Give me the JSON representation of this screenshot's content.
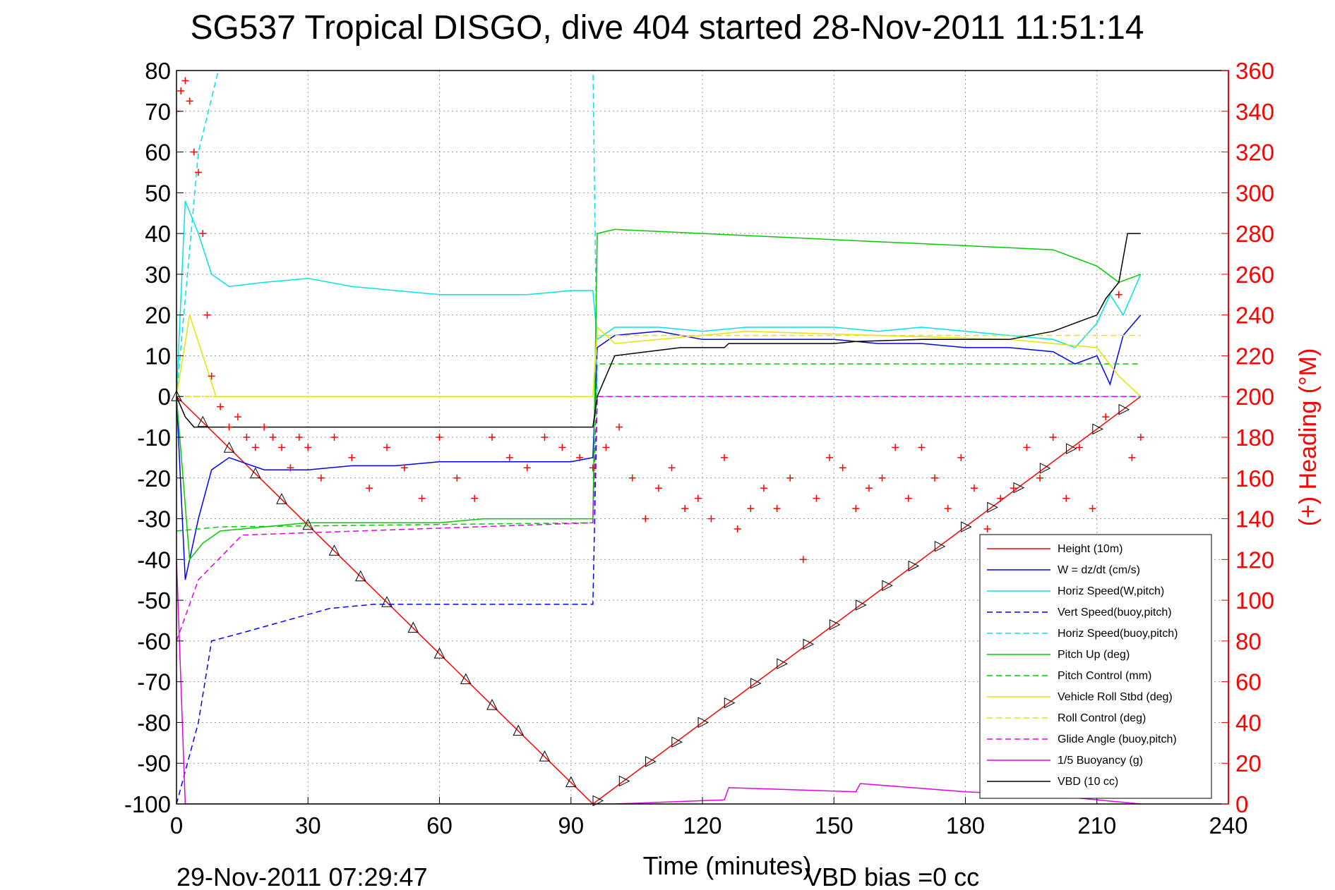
{
  "chart_data": {
    "type": "line",
    "title": "SG537 Tropical DISGO, dive 404 started 28-Nov-2011 11:51:14",
    "xlabel": "Time (minutes)",
    "ylabel": "",
    "y2label": "(+) Heading (°M)",
    "xlim": [
      0,
      240
    ],
    "ylim": [
      -100,
      80
    ],
    "y2lim": [
      0,
      360
    ],
    "xticks": [
      0,
      30,
      60,
      90,
      120,
      150,
      180,
      210,
      240
    ],
    "yticks": [
      -100,
      -90,
      -80,
      -70,
      -60,
      -50,
      -40,
      -30,
      -20,
      -10,
      0,
      10,
      20,
      30,
      40,
      50,
      60,
      70,
      80
    ],
    "y2ticks": [
      0,
      20,
      40,
      60,
      80,
      100,
      120,
      140,
      160,
      180,
      200,
      220,
      240,
      260,
      280,
      300,
      320,
      340,
      360
    ],
    "grid": true,
    "legend_position": "bottom-right",
    "footer_left": "29-Nov-2011 07:29:47",
    "footer_right": "VBD bias =0 cc",
    "series": [
      {
        "name": "Height (10m)",
        "color": "#ff0000",
        "style": "solid",
        "x": [
          0,
          95,
          220
        ],
        "y": [
          0,
          -100,
          0
        ]
      },
      {
        "name": "W = dz/dt (cm/s)",
        "color": "#0000ff",
        "style": "solid",
        "x": [
          0,
          2,
          5,
          8,
          12,
          20,
          30,
          40,
          50,
          60,
          70,
          80,
          90,
          95,
          96,
          100,
          110,
          120,
          130,
          140,
          150,
          160,
          170,
          180,
          190,
          200,
          205,
          210,
          213,
          216,
          220
        ],
        "y": [
          0,
          -45,
          -30,
          -18,
          -15,
          -18,
          -18,
          -17,
          -17,
          -16,
          -16,
          -16,
          -16,
          -15,
          12,
          15,
          16,
          14,
          14,
          14,
          14,
          13,
          13,
          12,
          12,
          11,
          8,
          10,
          3,
          15,
          20
        ]
      },
      {
        "name": "Horiz Speed(W,pitch)",
        "color": "#00e5e5",
        "style": "solid",
        "x": [
          0,
          2,
          5,
          8,
          12,
          20,
          30,
          40,
          50,
          60,
          70,
          80,
          90,
          95,
          96,
          100,
          110,
          120,
          130,
          140,
          150,
          160,
          170,
          180,
          190,
          200,
          205,
          210,
          213,
          216,
          220
        ],
        "y": [
          0,
          48,
          40,
          30,
          27,
          28,
          29,
          27,
          26,
          25,
          25,
          25,
          26,
          26,
          14,
          17,
          17,
          16,
          17,
          17,
          17,
          16,
          17,
          16,
          15,
          14,
          12,
          18,
          25,
          20,
          30
        ]
      },
      {
        "name": "Vert Speed(buoy,pitch)",
        "color": "#0000ff",
        "style": "dashed",
        "x": [
          0,
          5,
          8,
          15,
          25,
          35,
          45,
          55,
          65,
          75,
          85,
          95,
          96
        ],
        "y": [
          -100,
          -80,
          -60,
          -58,
          -55,
          -52,
          -51,
          -51,
          -51,
          -51,
          -51,
          -51,
          0
        ]
      },
      {
        "name": "Horiz Speed(buoy,pitch)",
        "color": "#00e5e5",
        "style": "dashed",
        "x": [
          0,
          5,
          10,
          30,
          60,
          90,
          95,
          96,
          220
        ],
        "y": [
          0,
          60,
          82,
          84,
          84,
          84,
          82,
          0,
          0
        ]
      },
      {
        "name": "Pitch Up (deg)",
        "color": "#00cc00",
        "style": "solid",
        "x": [
          0,
          3,
          6,
          10,
          20,
          30,
          40,
          50,
          60,
          70,
          80,
          90,
          95,
          96,
          100,
          120,
          140,
          160,
          180,
          200,
          210,
          215,
          220
        ],
        "y": [
          0,
          -40,
          -36,
          -33,
          -32,
          -31,
          -31,
          -31,
          -31,
          -30,
          -30,
          -30,
          -30,
          40,
          41,
          40,
          39,
          38,
          37,
          36,
          32,
          28,
          30
        ]
      },
      {
        "name": "Pitch Control (mm)",
        "color": "#00cc00",
        "style": "dashed",
        "x": [
          0,
          10,
          95,
          96,
          220
        ],
        "y": [
          -33,
          -32,
          -31,
          8,
          8
        ]
      },
      {
        "name": "Vehicle Roll Stbd (deg)",
        "color": "#e5e500",
        "style": "solid",
        "x": [
          0,
          3,
          6,
          9,
          15,
          30,
          60,
          95,
          96,
          100,
          130,
          160,
          190,
          210,
          215,
          220
        ],
        "y": [
          0,
          20,
          10,
          0,
          0,
          0,
          0,
          0,
          17,
          13,
          16,
          15,
          14,
          12,
          5,
          0
        ]
      },
      {
        "name": "Roll Control (deg)",
        "color": "#e5e500",
        "style": "dashed",
        "x": [
          0,
          10,
          95,
          96,
          220
        ],
        "y": [
          0,
          0,
          0,
          15,
          15
        ]
      },
      {
        "name": "Glide Angle (buoy,pitch)",
        "color": "#e500e5",
        "style": "dashed",
        "x": [
          0,
          5,
          15,
          95,
          96,
          220
        ],
        "y": [
          -60,
          -45,
          -34,
          -31,
          0,
          0
        ]
      },
      {
        "name": "1/5 Buoyancy (g)",
        "color": "#e500e5",
        "style": "solid",
        "x": [
          0,
          2,
          4,
          95,
          100,
          125,
          126,
          155,
          156,
          180,
          200,
          220
        ],
        "y": [
          -40,
          -100,
          -100,
          -100,
          -100,
          -99,
          -96,
          -97,
          -95,
          -97,
          -98,
          -100
        ]
      },
      {
        "name": "VBD (10 cc)",
        "color": "#000000",
        "style": "solid",
        "x": [
          0,
          2,
          4,
          95,
          96,
          100,
          115,
          125,
          126,
          150,
          155,
          170,
          190,
          200,
          205,
          210,
          212,
          215,
          217,
          220
        ],
        "y": [
          0,
          -5,
          -7.5,
          -7.5,
          0,
          10,
          12,
          12,
          13,
          13,
          13.5,
          14,
          14,
          16,
          18,
          20,
          24,
          28,
          40,
          40
        ]
      }
    ],
    "heading": {
      "name": "(+) Heading (°M)",
      "color": "#ff0000",
      "marker": "+",
      "x": [
        0,
        1,
        2,
        3,
        4,
        5,
        6,
        7,
        8,
        10,
        12,
        14,
        16,
        18,
        20,
        22,
        24,
        26,
        28,
        30,
        33,
        36,
        40,
        44,
        48,
        52,
        56,
        60,
        64,
        68,
        72,
        76,
        80,
        84,
        88,
        92,
        95,
        98,
        101,
        104,
        107,
        110,
        113,
        116,
        119,
        122,
        125,
        128,
        131,
        134,
        137,
        140,
        143,
        146,
        149,
        152,
        155,
        158,
        161,
        164,
        167,
        170,
        173,
        176,
        179,
        182,
        185,
        188,
        191,
        194,
        197,
        200,
        203,
        206,
        209,
        212,
        215,
        218,
        220
      ],
      "y": [
        340,
        350,
        355,
        345,
        320,
        310,
        280,
        240,
        210,
        195,
        185,
        190,
        180,
        175,
        185,
        180,
        175,
        165,
        180,
        175,
        160,
        180,
        170,
        155,
        175,
        165,
        150,
        180,
        160,
        150,
        180,
        170,
        165,
        180,
        175,
        170,
        165,
        175,
        185,
        160,
        140,
        155,
        165,
        145,
        150,
        140,
        170,
        135,
        145,
        155,
        145,
        160,
        120,
        150,
        170,
        165,
        145,
        155,
        160,
        175,
        150,
        175,
        160,
        145,
        170,
        155,
        135,
        150,
        155,
        175,
        160,
        180,
        150,
        175,
        145,
        190,
        250,
        170,
        180
      ]
    }
  }
}
